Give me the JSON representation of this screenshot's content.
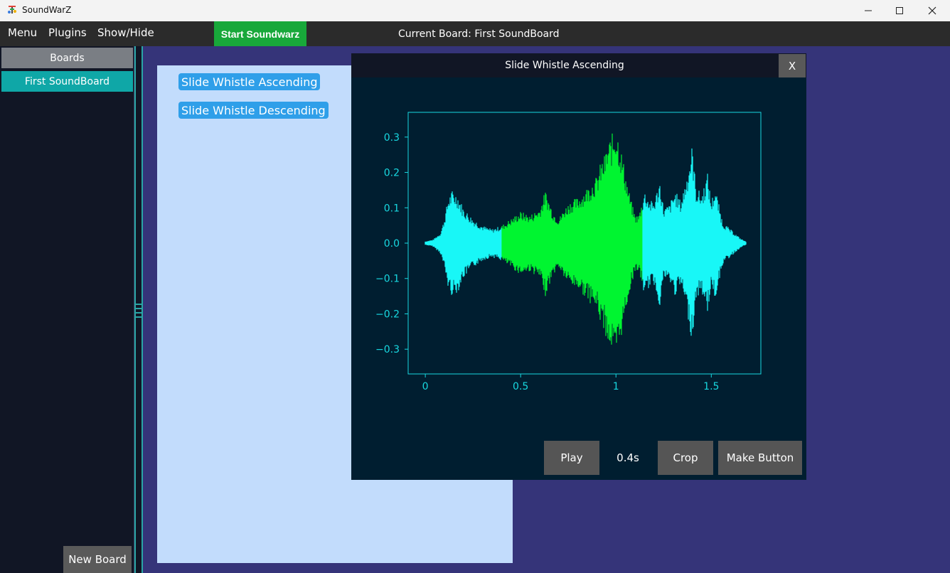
{
  "window": {
    "title": "SoundWarZ",
    "minimize_glyph": "—",
    "maximize_glyph": "☐",
    "close_glyph": "✕"
  },
  "menubar": {
    "menu": "Menu",
    "plugins": "Plugins",
    "show_hide": "Show/Hide",
    "start": "Start Soundwarz",
    "current_board": "Current Board: First SoundBoard"
  },
  "sidebar": {
    "header": "Boards",
    "items": [
      {
        "label": "First SoundBoard",
        "selected": true
      }
    ],
    "new_board": "New Board"
  },
  "board": {
    "buttons": [
      {
        "label": "Slide Whistle Ascending"
      },
      {
        "label": "Slide Whistle Descending"
      }
    ]
  },
  "dialog": {
    "title": "Slide Whistle Ascending",
    "close": "X",
    "play": "Play",
    "duration": "0.4s",
    "crop": "Crop",
    "make_button": "Make Button"
  },
  "colors": {
    "background": "#353479",
    "waveform": "#18f7f7",
    "selection": "#00f530",
    "plot_bg": "#001e30",
    "axis": "#18d8e0"
  },
  "chart_data": {
    "type": "area",
    "title": "",
    "xlabel": "",
    "ylabel": "",
    "xlim": [
      -0.09,
      1.76
    ],
    "ylim": [
      -0.37,
      0.37
    ],
    "xticks": [
      0,
      0.5,
      1,
      1.5
    ],
    "xtick_labels": [
      "0",
      "0.5",
      "1",
      "1.5"
    ],
    "yticks": [
      0.3,
      0.2,
      0.1,
      0.0,
      -0.1,
      -0.2,
      -0.3
    ],
    "ytick_labels": [
      "0.3",
      "0.2",
      "0.1",
      "0.0",
      "−0.1",
      "−0.2",
      "−0.3"
    ],
    "selection_range": [
      0.4,
      1.14
    ],
    "envelope": {
      "x": [
        0,
        0.04,
        0.08,
        0.1,
        0.12,
        0.14,
        0.17,
        0.2,
        0.25,
        0.3,
        0.35,
        0.4,
        0.45,
        0.5,
        0.55,
        0.6,
        0.63,
        0.65,
        0.67,
        0.7,
        0.73,
        0.76,
        0.8,
        0.85,
        0.88,
        0.9,
        0.92,
        0.94,
        0.96,
        0.98,
        1.0,
        1.02,
        1.04,
        1.06,
        1.08,
        1.1,
        1.12,
        1.15,
        1.18,
        1.2,
        1.23,
        1.25,
        1.28,
        1.31,
        1.34,
        1.37,
        1.4,
        1.42,
        1.45,
        1.48,
        1.5,
        1.52,
        1.56,
        1.6,
        1.65,
        1.68
      ],
      "y": [
        0.005,
        0.01,
        0.03,
        0.07,
        0.13,
        0.15,
        0.14,
        0.1,
        0.07,
        0.05,
        0.04,
        0.05,
        0.07,
        0.09,
        0.08,
        0.1,
        0.15,
        0.12,
        0.09,
        0.07,
        0.1,
        0.12,
        0.13,
        0.16,
        0.18,
        0.19,
        0.23,
        0.25,
        0.29,
        0.31,
        0.34,
        0.29,
        0.23,
        0.17,
        0.12,
        0.08,
        0.08,
        0.15,
        0.12,
        0.12,
        0.18,
        0.1,
        0.11,
        0.15,
        0.12,
        0.19,
        0.28,
        0.16,
        0.14,
        0.2,
        0.12,
        0.16,
        0.06,
        0.04,
        0.015,
        0.005
      ]
    }
  }
}
